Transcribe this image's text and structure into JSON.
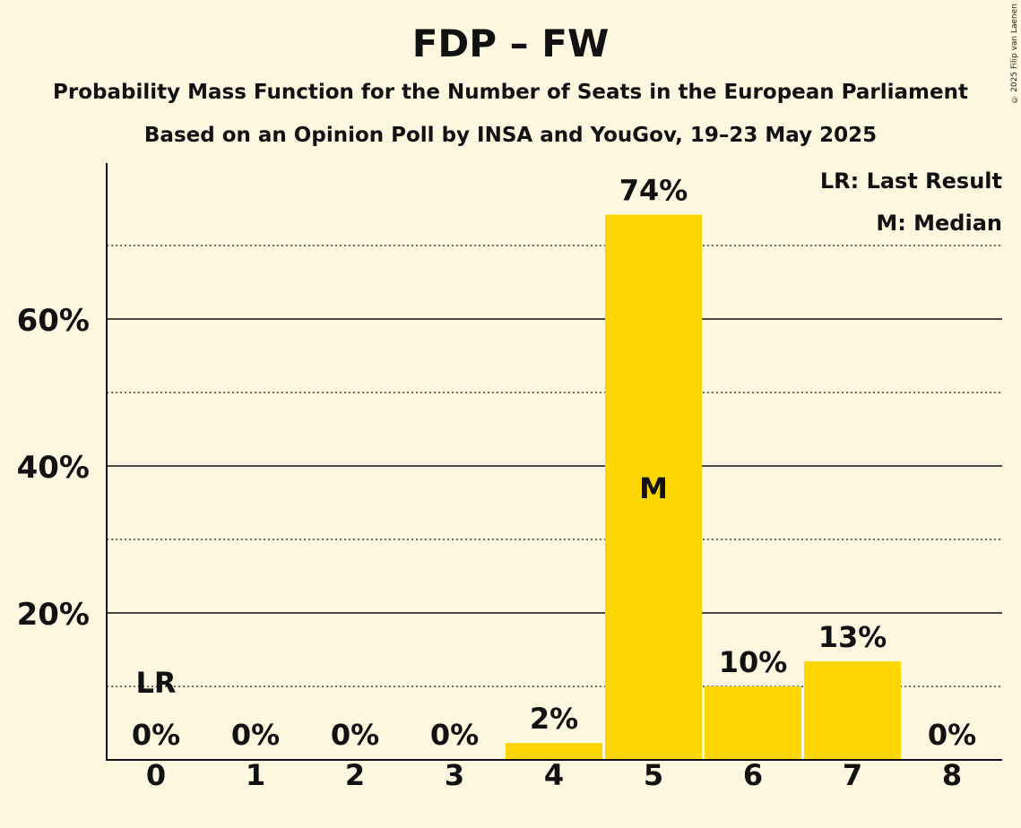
{
  "title": "FDP – FW",
  "subtitle1": "Probability Mass Function for the Number of Seats in the European Parliament",
  "subtitle2": "Based on an Opinion Poll by INSA and YouGov, 19–23 May 2025",
  "copyright": "© 2025 Filip van Laenen",
  "colors": {
    "background": "#FFF8E1",
    "bar": "#FFD700",
    "text": "#111111"
  },
  "chart_data": {
    "type": "bar",
    "categories": [
      "0",
      "1",
      "2",
      "3",
      "4",
      "5",
      "6",
      "7",
      "8"
    ],
    "values": [
      0,
      0,
      0,
      0,
      2.3,
      74.2,
      10,
      13.4,
      0
    ],
    "value_labels": [
      "0%",
      "0%",
      "0%",
      "0%",
      "2%",
      "74%",
      "10%",
      "13%",
      "0%"
    ],
    "ylim": [
      0,
      80
    ],
    "y_ticks": [
      20,
      40,
      60
    ],
    "y_tick_labels": [
      "20%",
      "40%",
      "60%"
    ],
    "minor_gridlines": [
      10,
      30,
      50,
      70
    ],
    "last_result": {
      "category": "0",
      "label": "LR"
    },
    "median": {
      "category": "5",
      "label": "M"
    },
    "legend": {
      "position": "top-right",
      "entries": [
        "LR: Last Result",
        "M: Median"
      ]
    }
  }
}
